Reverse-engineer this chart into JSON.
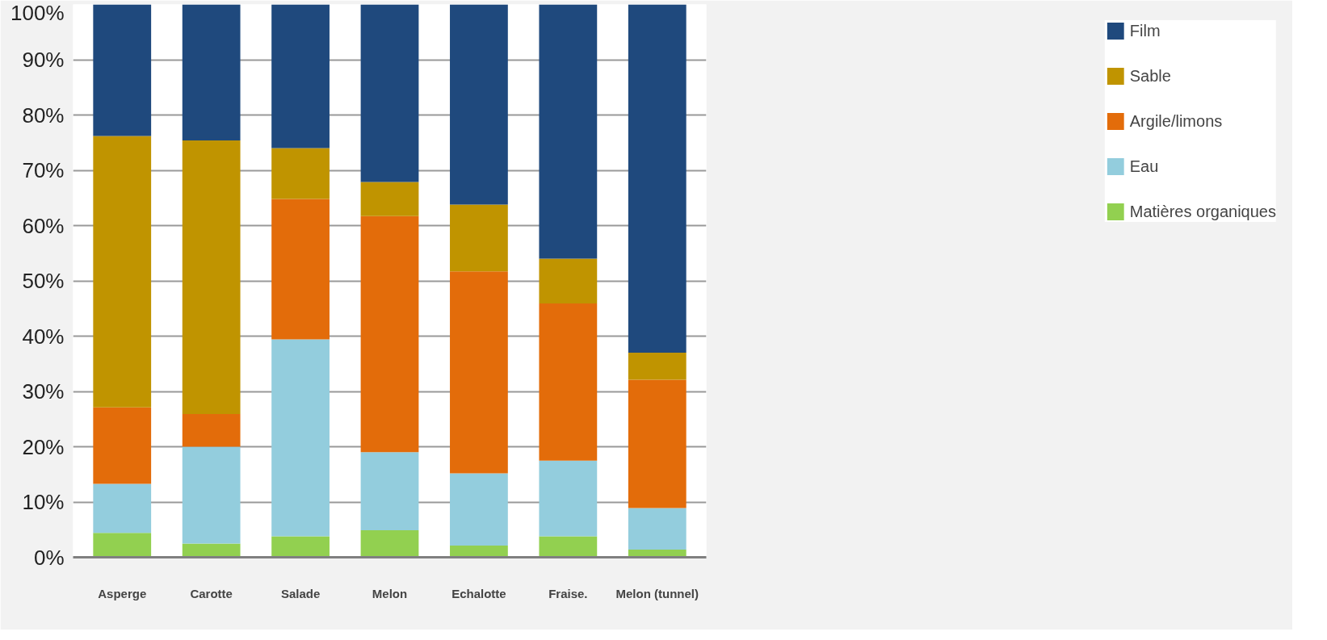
{
  "chart_data": {
    "type": "bar",
    "stacked": true,
    "categories": [
      "Asperge",
      "Carotte",
      "Salade",
      "Melon",
      "Echalotte",
      "Fraise.",
      "Melon (tunnel)"
    ],
    "series": [
      {
        "name": "Matières organiques",
        "color": "#92d050",
        "values": [
          4.4,
          2.5,
          3.8,
          4.9,
          2.1,
          3.8,
          1.4
        ]
      },
      {
        "name": "Eau",
        "color": "#93cddd",
        "values": [
          8.9,
          17.5,
          35.6,
          14.1,
          13.1,
          13.7,
          7.5
        ]
      },
      {
        "name": "Argile/limons",
        "color": "#e36c0a",
        "values": [
          13.8,
          5.9,
          25.4,
          42.7,
          36.5,
          28.4,
          23.2
        ]
      },
      {
        "name": "Sable",
        "color": "#c09400",
        "values": [
          49.1,
          49.5,
          9.2,
          6.2,
          12.1,
          8.1,
          4.9
        ]
      },
      {
        "name": "Film",
        "color": "#1f497d",
        "values": [
          23.8,
          24.6,
          26,
          32.1,
          36.2,
          46,
          63
        ]
      }
    ],
    "ylim": [
      0,
      100
    ],
    "yticks": [
      {
        "value": 0,
        "label": "0%"
      },
      {
        "value": 10,
        "label": "10%"
      },
      {
        "value": 20,
        "label": "20%"
      },
      {
        "value": 30,
        "label": "30%"
      },
      {
        "value": 40,
        "label": "40%"
      },
      {
        "value": 50,
        "label": "50%"
      },
      {
        "value": 60,
        "label": "60%"
      },
      {
        "value": 70,
        "label": "70%"
      },
      {
        "value": 80,
        "label": "80%"
      },
      {
        "value": 90,
        "label": "90%"
      },
      {
        "value": 100,
        "label": "100%"
      }
    ],
    "grid": "y",
    "legend": "right"
  }
}
